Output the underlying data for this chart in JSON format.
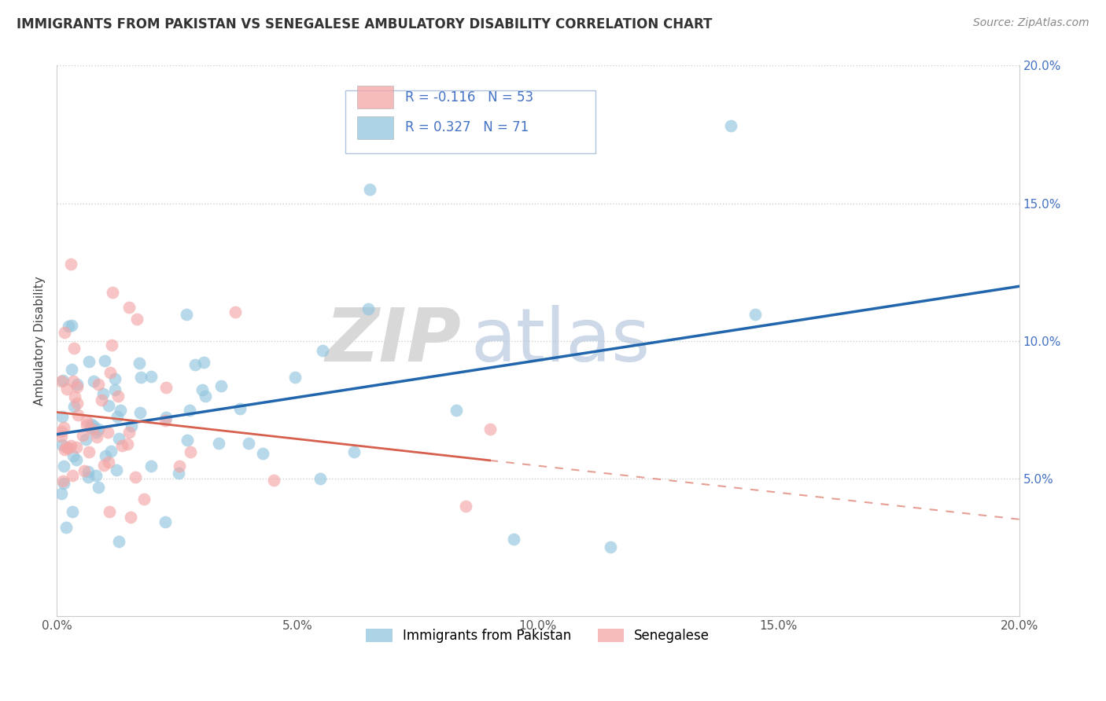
{
  "title": "IMMIGRANTS FROM PAKISTAN VS SENEGALESE AMBULATORY DISABILITY CORRELATION CHART",
  "source": "Source: ZipAtlas.com",
  "ylabel": "Ambulatory Disability",
  "xlim": [
    0.0,
    0.2
  ],
  "ylim": [
    0.0,
    0.2
  ],
  "x_ticks": [
    0.0,
    0.05,
    0.1,
    0.15,
    0.2
  ],
  "y_ticks": [
    0.0,
    0.05,
    0.1,
    0.15,
    0.2
  ],
  "legend1_label": "Immigrants from Pakistan",
  "legend2_label": "Senegalese",
  "r1": 0.327,
  "n1": 71,
  "r2": -0.116,
  "n2": 53,
  "blue_color": "#92c5de",
  "pink_color": "#f4a6a6",
  "blue_line_color": "#2166ac",
  "pink_line_color": "#d6604d",
  "watermark_zip": "ZIP",
  "watermark_atlas": "atlas",
  "grid_color": "#d0d0d0",
  "spine_color": "#cccccc",
  "tick_color": "#4472C4",
  "title_color": "#333333",
  "source_color": "#888888",
  "legend_edge_color": "#b0c4de"
}
